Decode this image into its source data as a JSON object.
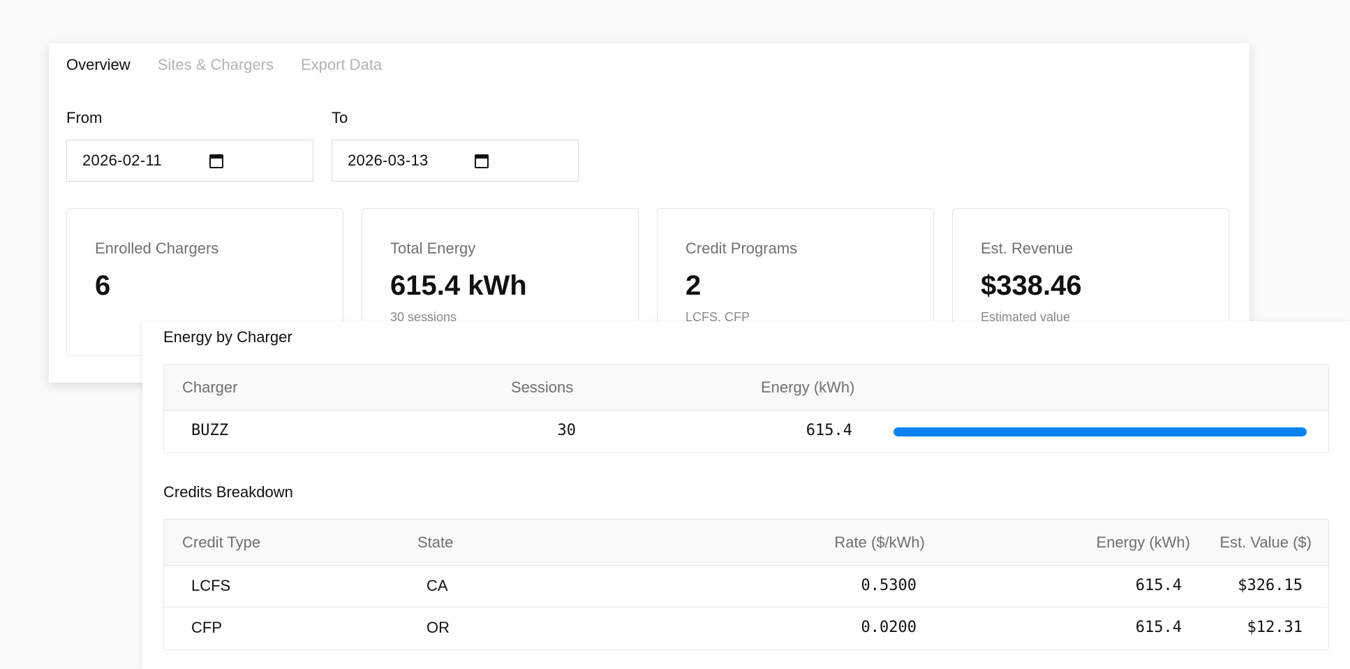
{
  "tabs": [
    {
      "label": "Overview",
      "active": true
    },
    {
      "label": "Sites & Chargers",
      "active": false
    },
    {
      "label": "Export Data",
      "active": false
    }
  ],
  "filters": {
    "from_label": "From",
    "from_value": "2026-02-11",
    "to_label": "To",
    "to_value": "2026-03-13"
  },
  "stats": [
    {
      "label": "Enrolled Chargers",
      "value": "6",
      "sub": ""
    },
    {
      "label": "Total Energy",
      "value": "615.4 kWh",
      "sub": "30 sessions"
    },
    {
      "label": "Credit Programs",
      "value": "2",
      "sub": "LCFS, CFP"
    },
    {
      "label": "Est. Revenue",
      "value": "$338.46",
      "sub": "Estimated value"
    }
  ],
  "energy_by_charger": {
    "title": "Energy by Charger",
    "headers": {
      "charger": "Charger",
      "sessions": "Sessions",
      "energy": "Energy (kWh)"
    },
    "rows": [
      {
        "charger": "BUZZ",
        "sessions": "30",
        "energy": "615.4",
        "share": 1.0
      }
    ]
  },
  "credits_breakdown": {
    "title": "Credits Breakdown",
    "headers": {
      "type": "Credit Type",
      "state": "State",
      "rate": "Rate ($/kWh)",
      "energy": "Energy (kWh)",
      "value": "Est. Value ($)"
    },
    "rows": [
      {
        "type": "LCFS",
        "state": "CA",
        "rate": "0.5300",
        "energy": "615.4",
        "value": "$326.15"
      },
      {
        "type": "CFP",
        "state": "OR",
        "rate": "0.0200",
        "energy": "615.4",
        "value": "$12.31"
      }
    ]
  },
  "colors": {
    "accent": "#0a84f2",
    "muted": "#b4b4b4"
  },
  "icons": {
    "date_picker": "calendar-icon"
  }
}
